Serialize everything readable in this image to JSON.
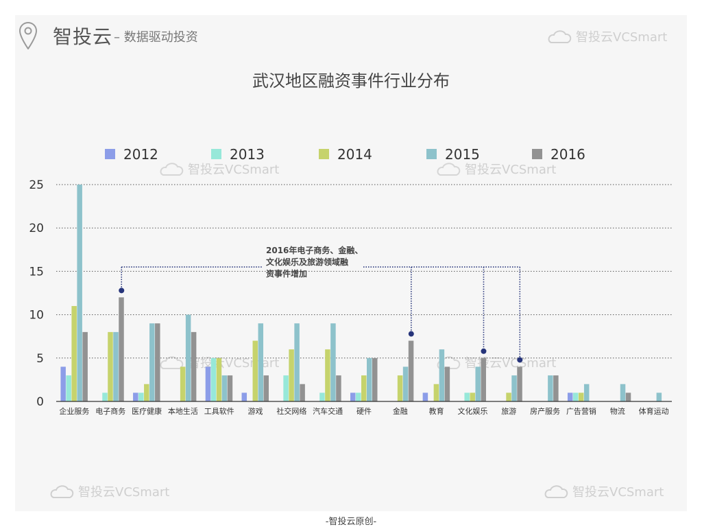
{
  "header": {
    "brand": "智投云",
    "tagline": "– 数据驱动投资",
    "watermark": "智投云VCSmart"
  },
  "footer": "-智投云原创-",
  "colors": {
    "2012": "#8c9de8",
    "2013": "#97e8d9",
    "2014": "#c6d36c",
    "2015": "#8dc2cb",
    "2016": "#929292",
    "annotation": "#26347a"
  },
  "chart_data": {
    "type": "bar",
    "title": "武汉地区融资事件行业分布",
    "xlabel": "",
    "ylabel": "",
    "ylim": [
      0,
      25
    ],
    "yticks": [
      0,
      5,
      10,
      15,
      20,
      25
    ],
    "grid": true,
    "legend_position": "top",
    "categories": [
      "企业服务",
      "电子商务",
      "医疗健康",
      "本地生活",
      "工具软件",
      "游戏",
      "社交网络",
      "汽车交通",
      "硬件",
      "金融",
      "教育",
      "文化娱乐",
      "旅游",
      "房产服务",
      "广告营销",
      "物流",
      "体育运动"
    ],
    "series": [
      {
        "name": "2012",
        "values": [
          4,
          0,
          1,
          0,
          4,
          1,
          0,
          0,
          1,
          0,
          1,
          0,
          0,
          0,
          1,
          0,
          0
        ]
      },
      {
        "name": "2013",
        "values": [
          3,
          1,
          1,
          0,
          5,
          0,
          3,
          1,
          1,
          0,
          0,
          1,
          0,
          0,
          1,
          0,
          0
        ]
      },
      {
        "name": "2014",
        "values": [
          11,
          8,
          2,
          4,
          5,
          7,
          6,
          6,
          3,
          3,
          2,
          1,
          1,
          0,
          1,
          0,
          0
        ]
      },
      {
        "name": "2015",
        "values": [
          25,
          8,
          9,
          10,
          3,
          9,
          9,
          9,
          5,
          4,
          6,
          4,
          3,
          3,
          2,
          2,
          1
        ]
      },
      {
        "name": "2016",
        "values": [
          8,
          12,
          9,
          8,
          3,
          3,
          2,
          3,
          5,
          7,
          4,
          5,
          4,
          3,
          0,
          1,
          0
        ]
      }
    ],
    "annotation": {
      "lines": [
        "2016年电子商务、金融、",
        "文化娱乐及旅游领域融",
        "资事件增加"
      ],
      "points": [
        {
          "category": "电子商务",
          "series": "2016",
          "value": 12
        },
        {
          "category": "金融",
          "series": "2016",
          "value": 7
        },
        {
          "category": "文化娱乐",
          "series": "2016",
          "value": 5
        },
        {
          "category": "旅游",
          "series": "2016",
          "value": 4
        }
      ],
      "bracket_value": 15.5
    }
  }
}
